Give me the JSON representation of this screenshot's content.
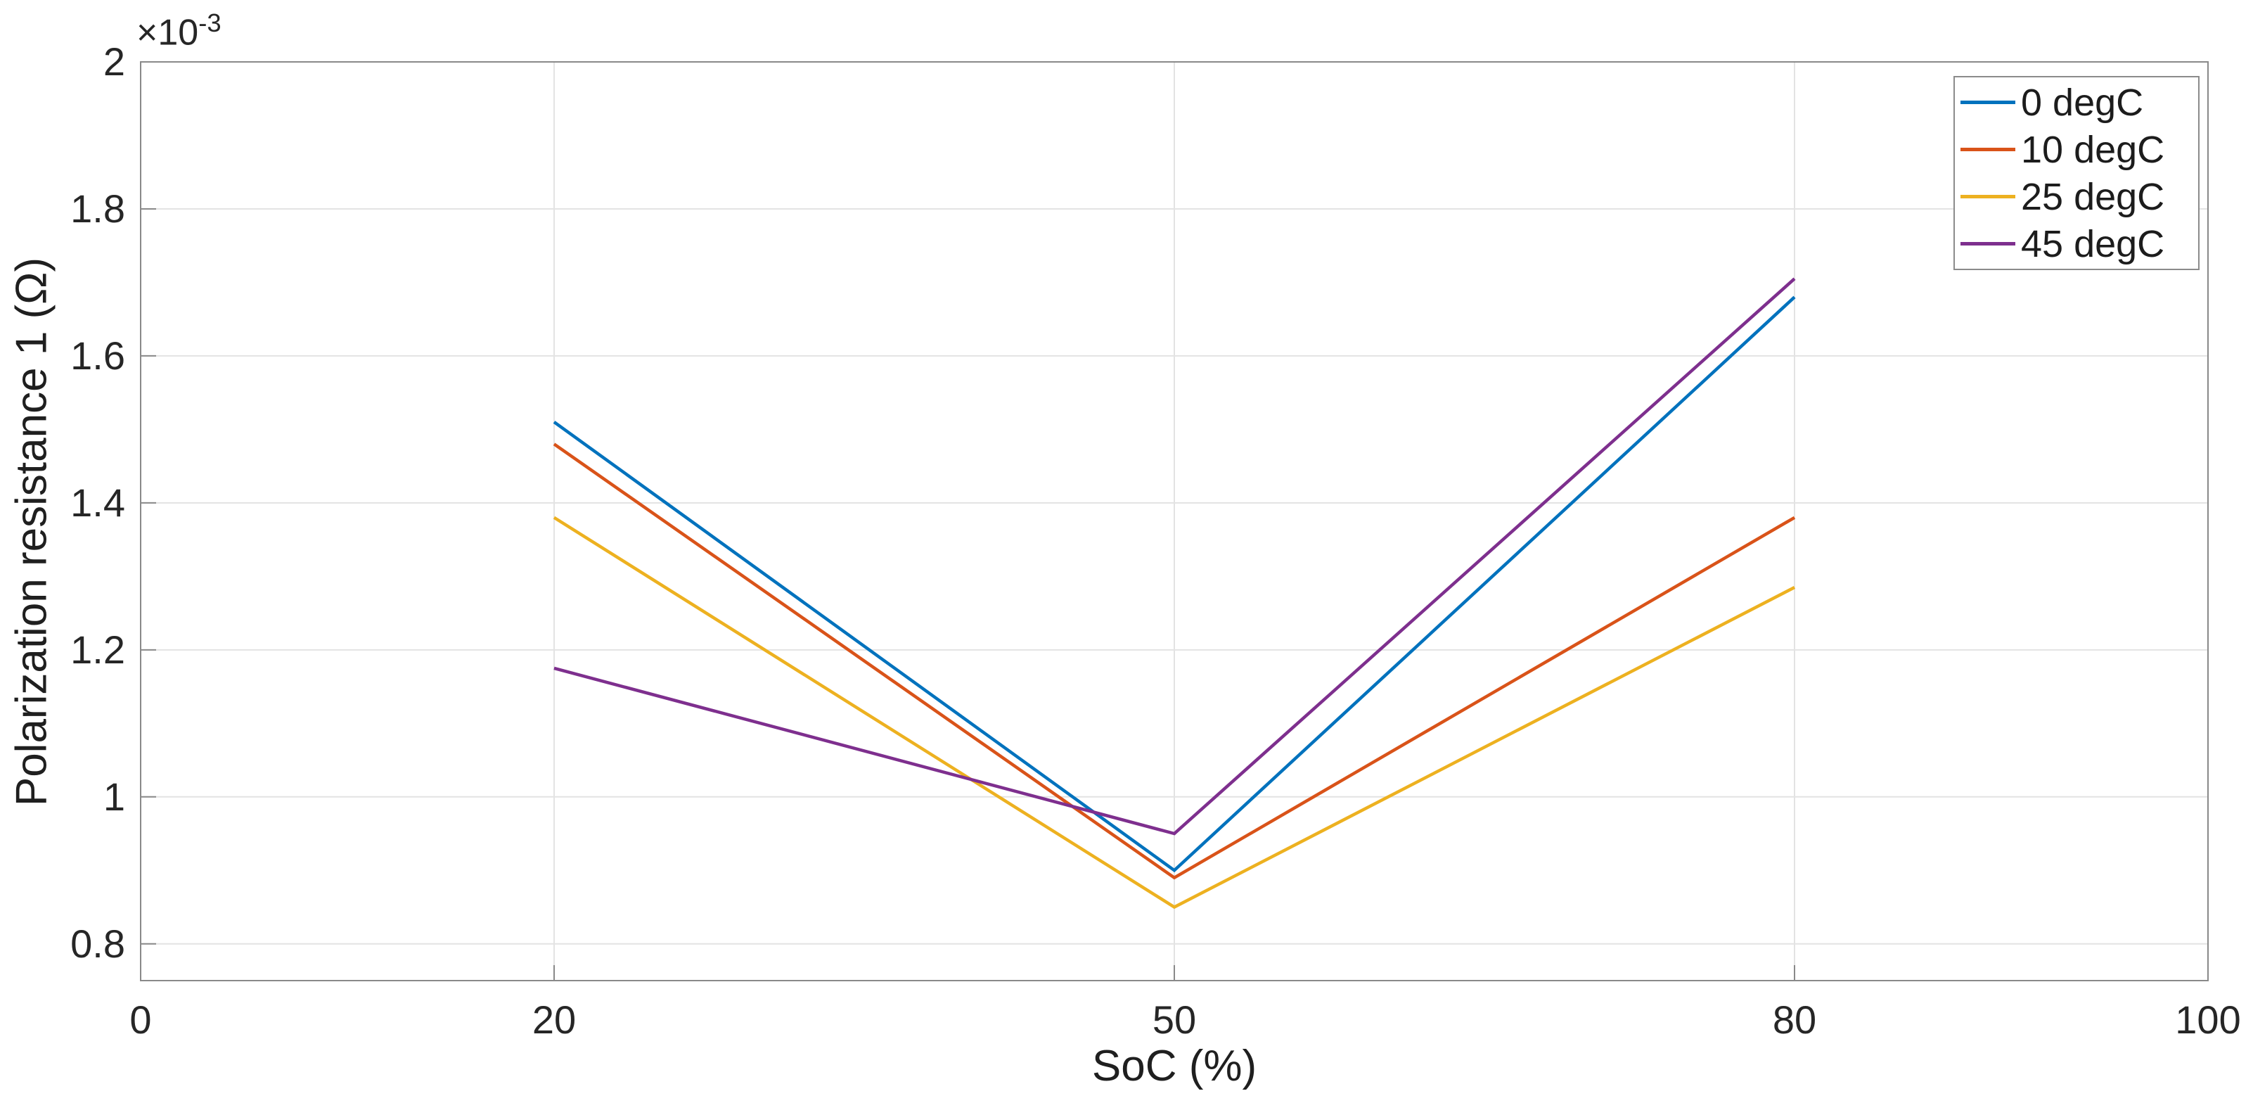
{
  "figure": {
    "background": "#ffffff"
  },
  "colors": {
    "axis": "#898989",
    "grid": "#e3e3e3",
    "tick_text": "#262626",
    "legend_border": "#8b8b8b"
  },
  "chart_data": {
    "type": "line",
    "title": "",
    "xlabel": "SoC (%)",
    "ylabel": "Polarization resistance 1 (Ω)",
    "y_offset_base": "×10",
    "y_offset_exp": "-3",
    "grid": true,
    "x": [
      20,
      50,
      80
    ],
    "series": [
      {
        "name": "0 degC",
        "color": "#0072BD",
        "values": [
          0.00151,
          0.0009,
          0.00168
        ]
      },
      {
        "name": "10 degC",
        "color": "#D95319",
        "values": [
          0.00148,
          0.00089,
          0.00138
        ]
      },
      {
        "name": "25 degC",
        "color": "#EDB120",
        "values": [
          0.00138,
          0.00085,
          0.001285
        ]
      },
      {
        "name": "45 degC",
        "color": "#7E2F8E",
        "values": [
          0.001175,
          0.00095,
          0.001705
        ]
      }
    ],
    "xlim": [
      0,
      100
    ],
    "ylim": [
      0.00075,
      0.002
    ],
    "xticks": [
      0,
      20,
      50,
      80,
      100
    ],
    "xticklabels": [
      "0",
      "20",
      "50",
      "80",
      "100"
    ],
    "yticks": [
      0.0008,
      0.001,
      0.0012,
      0.0014,
      0.0016,
      0.0018,
      0.002
    ],
    "yticklabels": [
      "0.8",
      "1",
      "1.2",
      "1.4",
      "1.6",
      "1.8",
      "2"
    ],
    "legend": {
      "position": "top-right",
      "labels": [
        "0 degC",
        "10 degC",
        "25 degC",
        "45 degC"
      ]
    }
  }
}
